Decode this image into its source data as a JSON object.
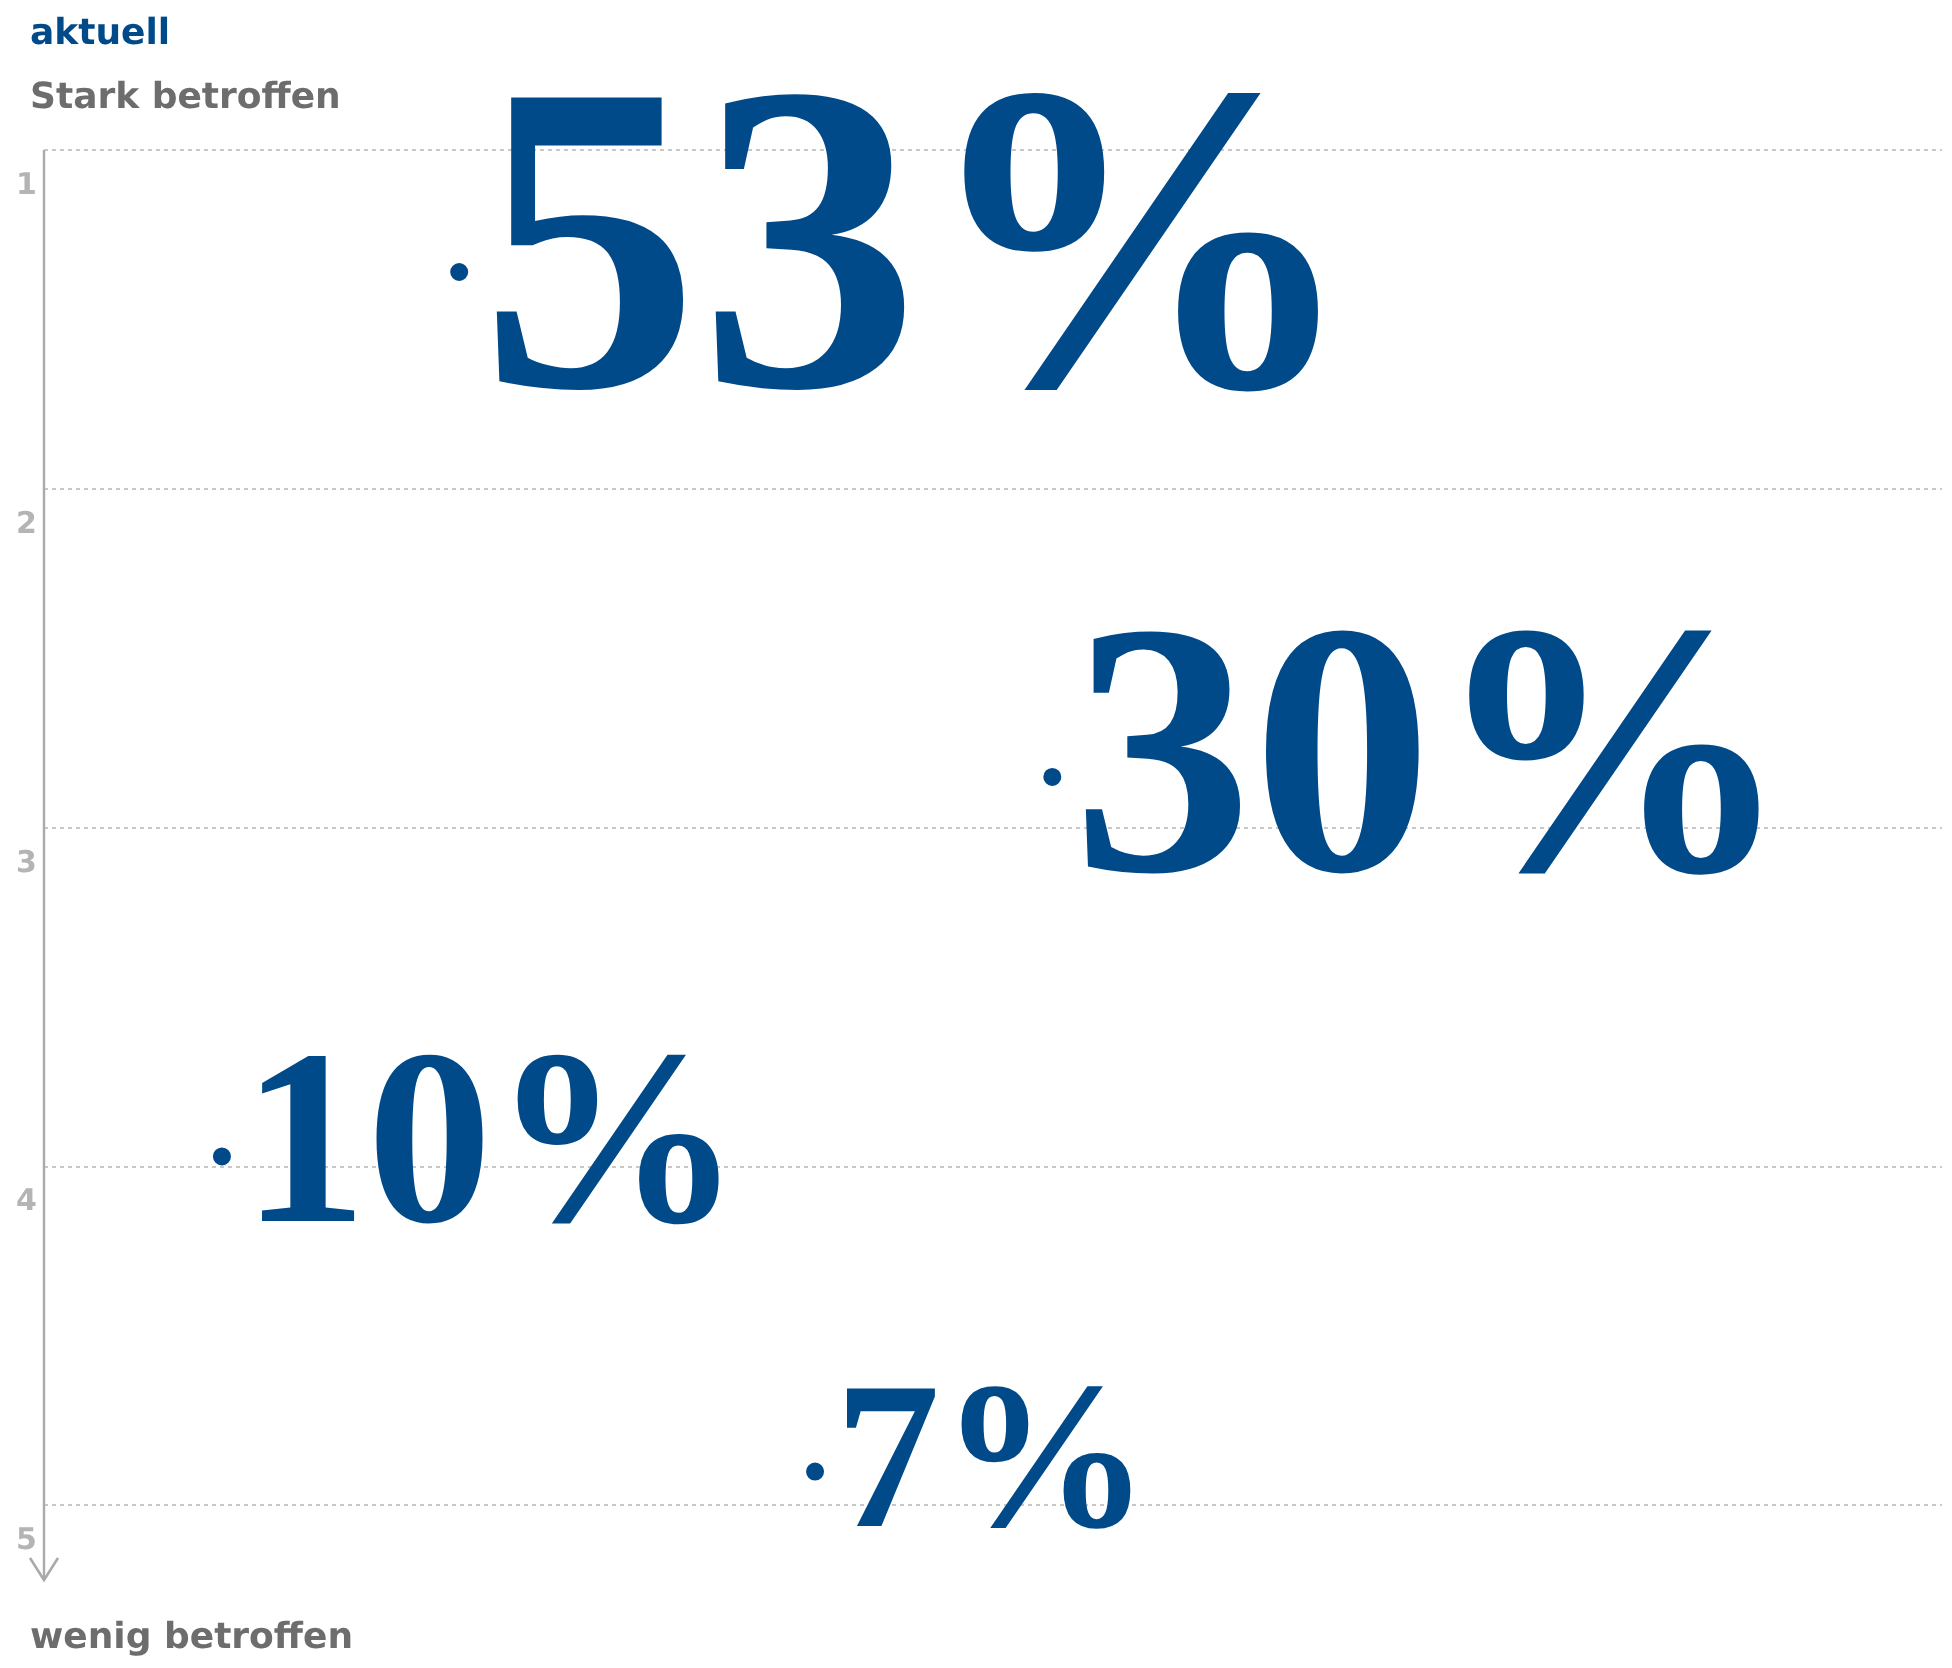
{
  "chart_data": {
    "type": "scatter",
    "title": "aktuell",
    "annotations": [
      "Stark betroffen",
      "wenig betroffen",
      "10%",
      "53%",
      "7%",
      "30%"
    ],
    "categories": [
      null,
      null,
      null,
      null,
      null,
      null,
      null,
      null,
      null,
      null,
      null,
      null,
      null,
      null,
      null,
      null
    ],
    "series": [
      {
        "color": "#004a8a",
        "values": [
          null,
          3.97,
          null,
          1.36,
          null,
          null,
          4.9,
          null,
          2.85,
          null,
          null,
          null,
          null,
          null,
          null,
          null
        ]
      }
    ],
    "ylim": [
      5.22,
      1
    ],
    "yticks": [
      1,
      2,
      3,
      4,
      5
    ],
    "grid": "y",
    "tick_labels": "y",
    "marker": "circle"
  }
}
